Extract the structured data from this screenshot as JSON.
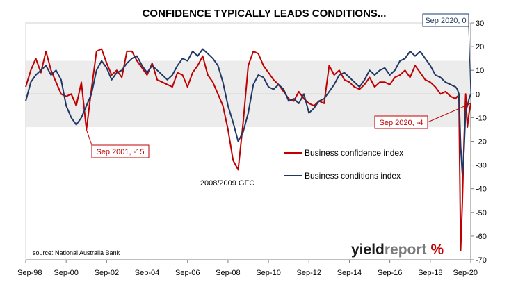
{
  "chart_data": {
    "type": "line",
    "title": "CONFIDENCE TYPICALLY LEADS CONDITIONS...",
    "xlabel": "",
    "ylabel": "",
    "ylim": [
      -70,
      30
    ],
    "y_ticks": [
      "30",
      "20",
      "10",
      "0",
      "-10",
      "-20",
      "-30",
      "-40",
      "-50",
      "-60",
      "-70"
    ],
    "y_axis_side": "right",
    "x_range": [
      "1998-09",
      "2020-09"
    ],
    "x_ticks": [
      "Sep-98",
      "Sep-00",
      "Sep-02",
      "Sep-04",
      "Sep-06",
      "Sep-08",
      "Sep-10",
      "Sep-12",
      "Sep-14",
      "Sep-16",
      "Sep-18",
      "Sep-20"
    ],
    "grid": false,
    "legend_position": "center-right",
    "series": [
      {
        "name": "Business confidence index",
        "color": "#c00000",
        "points": [
          [
            "1998-09",
            3
          ],
          [
            "1998-12",
            10
          ],
          [
            "1999-03",
            15
          ],
          [
            "1999-06",
            9
          ],
          [
            "1999-09",
            18
          ],
          [
            "1999-12",
            10
          ],
          [
            "2000-03",
            5
          ],
          [
            "2000-06",
            0
          ],
          [
            "2000-09",
            -1
          ],
          [
            "2000-12",
            0
          ],
          [
            "2001-03",
            -5
          ],
          [
            "2001-06",
            5
          ],
          [
            "2001-09",
            -15
          ],
          [
            "2001-12",
            2
          ],
          [
            "2002-03",
            18
          ],
          [
            "2002-06",
            19
          ],
          [
            "2002-09",
            13
          ],
          [
            "2002-12",
            8
          ],
          [
            "2003-03",
            10
          ],
          [
            "2003-06",
            7
          ],
          [
            "2003-09",
            18
          ],
          [
            "2003-12",
            18
          ],
          [
            "2004-03",
            14
          ],
          [
            "2004-06",
            11
          ],
          [
            "2004-09",
            8
          ],
          [
            "2004-12",
            13
          ],
          [
            "2005-03",
            6
          ],
          [
            "2005-06",
            5
          ],
          [
            "2005-09",
            4
          ],
          [
            "2005-12",
            3
          ],
          [
            "2006-03",
            9
          ],
          [
            "2006-06",
            8
          ],
          [
            "2006-09",
            3
          ],
          [
            "2006-12",
            9
          ],
          [
            "2007-03",
            12
          ],
          [
            "2007-06",
            16
          ],
          [
            "2007-09",
            8
          ],
          [
            "2007-12",
            5
          ],
          [
            "2008-03",
            0
          ],
          [
            "2008-06",
            -5
          ],
          [
            "2008-09",
            -15
          ],
          [
            "2008-12",
            -28
          ],
          [
            "2009-03",
            -32
          ],
          [
            "2009-06",
            -12
          ],
          [
            "2009-09",
            12
          ],
          [
            "2009-12",
            18
          ],
          [
            "2010-03",
            17
          ],
          [
            "2010-06",
            12
          ],
          [
            "2010-09",
            9
          ],
          [
            "2010-12",
            6
          ],
          [
            "2011-03",
            4
          ],
          [
            "2011-06",
            1
          ],
          [
            "2011-09",
            -2
          ],
          [
            "2011-12",
            -3
          ],
          [
            "2012-03",
            1
          ],
          [
            "2012-06",
            -2
          ],
          [
            "2012-09",
            -4
          ],
          [
            "2012-12",
            -5
          ],
          [
            "2013-03",
            -3
          ],
          [
            "2013-06",
            -4
          ],
          [
            "2013-09",
            12
          ],
          [
            "2013-12",
            8
          ],
          [
            "2014-03",
            10
          ],
          [
            "2014-06",
            6
          ],
          [
            "2014-09",
            5
          ],
          [
            "2014-12",
            3
          ],
          [
            "2015-03",
            2
          ],
          [
            "2015-06",
            4
          ],
          [
            "2015-09",
            7
          ],
          [
            "2015-12",
            3
          ],
          [
            "2016-03",
            5
          ],
          [
            "2016-06",
            5
          ],
          [
            "2016-09",
            4
          ],
          [
            "2016-12",
            7
          ],
          [
            "2017-03",
            8
          ],
          [
            "2017-06",
            10
          ],
          [
            "2017-09",
            7
          ],
          [
            "2017-12",
            12
          ],
          [
            "2018-03",
            9
          ],
          [
            "2018-06",
            6
          ],
          [
            "2018-09",
            5
          ],
          [
            "2018-12",
            3
          ],
          [
            "2019-03",
            0
          ],
          [
            "2019-06",
            1
          ],
          [
            "2019-09",
            -1
          ],
          [
            "2019-12",
            -2
          ],
          [
            "2020-01",
            -1
          ],
          [
            "2020-02",
            -2
          ],
          [
            "2020-03",
            -66
          ],
          [
            "2020-04",
            -46
          ],
          [
            "2020-05",
            -20
          ],
          [
            "2020-06",
            0
          ],
          [
            "2020-07",
            -14
          ],
          [
            "2020-08",
            -8
          ],
          [
            "2020-09",
            -4
          ]
        ]
      },
      {
        "name": "Business conditions index",
        "color": "#1f3864",
        "points": [
          [
            "1998-09",
            -3
          ],
          [
            "1998-12",
            5
          ],
          [
            "1999-03",
            8
          ],
          [
            "1999-06",
            10
          ],
          [
            "1999-09",
            12
          ],
          [
            "1999-12",
            8
          ],
          [
            "2000-03",
            10
          ],
          [
            "2000-06",
            6
          ],
          [
            "2000-09",
            -5
          ],
          [
            "2000-12",
            -10
          ],
          [
            "2001-03",
            -13
          ],
          [
            "2001-06",
            -10
          ],
          [
            "2001-09",
            -5
          ],
          [
            "2001-12",
            0
          ],
          [
            "2002-03",
            10
          ],
          [
            "2002-06",
            14
          ],
          [
            "2002-09",
            11
          ],
          [
            "2002-12",
            6
          ],
          [
            "2003-03",
            9
          ],
          [
            "2003-06",
            10
          ],
          [
            "2003-09",
            13
          ],
          [
            "2003-12",
            15
          ],
          [
            "2004-03",
            16
          ],
          [
            "2004-06",
            12
          ],
          [
            "2004-09",
            9
          ],
          [
            "2004-12",
            12
          ],
          [
            "2005-03",
            10
          ],
          [
            "2005-06",
            8
          ],
          [
            "2005-09",
            6
          ],
          [
            "2005-12",
            8
          ],
          [
            "2006-03",
            12
          ],
          [
            "2006-06",
            15
          ],
          [
            "2006-09",
            14
          ],
          [
            "2006-12",
            18
          ],
          [
            "2007-03",
            16
          ],
          [
            "2007-06",
            19
          ],
          [
            "2007-09",
            17
          ],
          [
            "2007-12",
            15
          ],
          [
            "2008-03",
            12
          ],
          [
            "2008-06",
            5
          ],
          [
            "2008-09",
            -5
          ],
          [
            "2008-12",
            -12
          ],
          [
            "2009-03",
            -20
          ],
          [
            "2009-06",
            -16
          ],
          [
            "2009-09",
            -8
          ],
          [
            "2009-12",
            4
          ],
          [
            "2010-03",
            8
          ],
          [
            "2010-06",
            7
          ],
          [
            "2010-09",
            3
          ],
          [
            "2010-12",
            2
          ],
          [
            "2011-03",
            4
          ],
          [
            "2011-06",
            2
          ],
          [
            "2011-09",
            -3
          ],
          [
            "2011-12",
            -2
          ],
          [
            "2012-03",
            -4
          ],
          [
            "2012-06",
            0
          ],
          [
            "2012-09",
            -8
          ],
          [
            "2012-12",
            -6
          ],
          [
            "2013-03",
            -3
          ],
          [
            "2013-06",
            -2
          ],
          [
            "2013-09",
            1
          ],
          [
            "2013-12",
            4
          ],
          [
            "2014-03",
            8
          ],
          [
            "2014-06",
            9
          ],
          [
            "2014-09",
            7
          ],
          [
            "2014-12",
            5
          ],
          [
            "2015-03",
            3
          ],
          [
            "2015-06",
            6
          ],
          [
            "2015-09",
            10
          ],
          [
            "2015-12",
            8
          ],
          [
            "2016-03",
            10
          ],
          [
            "2016-06",
            11
          ],
          [
            "2016-09",
            8
          ],
          [
            "2016-12",
            10
          ],
          [
            "2017-03",
            14
          ],
          [
            "2017-06",
            15
          ],
          [
            "2017-09",
            18
          ],
          [
            "2017-12",
            16
          ],
          [
            "2018-03",
            18
          ],
          [
            "2018-06",
            15
          ],
          [
            "2018-09",
            12
          ],
          [
            "2018-12",
            8
          ],
          [
            "2019-03",
            7
          ],
          [
            "2019-06",
            5
          ],
          [
            "2019-09",
            4
          ],
          [
            "2019-12",
            3
          ],
          [
            "2020-01",
            2
          ],
          [
            "2020-02",
            0
          ],
          [
            "2020-03",
            -22
          ],
          [
            "2020-04",
            -34
          ],
          [
            "2020-05",
            -24
          ],
          [
            "2020-06",
            -7
          ],
          [
            "2020-07",
            -5
          ],
          [
            "2020-08",
            -2
          ],
          [
            "2020-09",
            0
          ]
        ]
      }
    ],
    "annotations": [
      {
        "text": "Sep 2001, -15",
        "series": "Business confidence index",
        "x": "2001-09",
        "y": -15
      },
      {
        "text": "Sep 2020, -4",
        "series": "Business confidence index",
        "x": "2020-09",
        "y": -4
      },
      {
        "text": "Sep 2020, 0",
        "series": "Business conditions index",
        "x": "2020-09",
        "y": 0
      },
      {
        "text": "2008/2009 GFC"
      }
    ],
    "source": "source: National Australia Bank"
  },
  "logo": {
    "part1": "yield",
    "part2": "report",
    "symbol": "%"
  }
}
